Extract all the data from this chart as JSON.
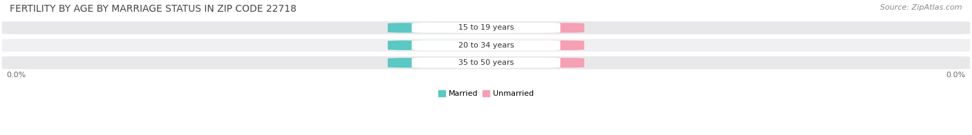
{
  "title": "FERTILITY BY AGE BY MARRIAGE STATUS IN ZIP CODE 22718",
  "source": "Source: ZipAtlas.com",
  "categories": [
    "15 to 19 years",
    "20 to 34 years",
    "35 to 50 years"
  ],
  "married_values": [
    0.0,
    0.0,
    0.0
  ],
  "unmarried_values": [
    0.0,
    0.0,
    0.0
  ],
  "married_color": "#5bc8c4",
  "unmarried_color": "#f5a0b5",
  "bar_bg_color": "#e8e8ea",
  "bar_bg_color2": "#f0f0f2",
  "title_fontsize": 10,
  "label_fontsize": 8,
  "tick_fontsize": 8,
  "source_fontsize": 8,
  "legend_married": "Married",
  "legend_unmarried": "Unmarried",
  "background_color": "#ffffff",
  "x_axis_left_label": "0.0%",
  "x_axis_right_label": "0.0%"
}
